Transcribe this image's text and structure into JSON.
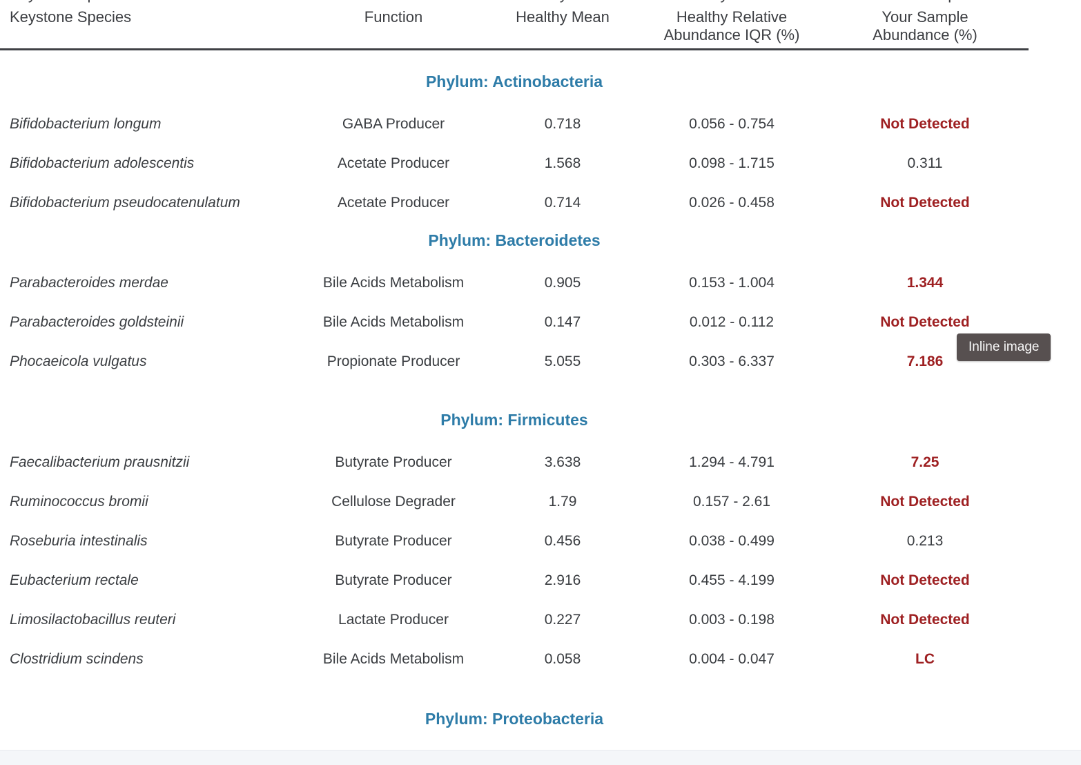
{
  "header": {
    "columns": [
      {
        "label": "Keystone Species"
      },
      {
        "label": "Function"
      },
      {
        "label": "Healthy Mean"
      },
      {
        "label": "Healthy Relative",
        "sub": "Abundance IQR (%)"
      },
      {
        "label": "Your Sample",
        "sub": "Abundance (%)"
      }
    ]
  },
  "sections": [
    {
      "title": "Phylum: Actinobacteria",
      "rows": [
        {
          "species": "Bifidobacterium longum",
          "function": "GABA Producer",
          "healthy_mean": "0.718",
          "iqr": "0.056 - 0.754",
          "sample": "Not Detected",
          "status": "alert"
        },
        {
          "species": "Bifidobacterium adolescentis",
          "function": "Acetate Producer",
          "healthy_mean": "1.568",
          "iqr": "0.098 - 1.715",
          "sample": "0.311",
          "status": "normal"
        },
        {
          "species": "Bifidobacterium pseudocatenulatum",
          "function": "Acetate Producer",
          "healthy_mean": "0.714",
          "iqr": "0.026 - 0.458",
          "sample": "Not Detected",
          "status": "alert"
        }
      ]
    },
    {
      "title": "Phylum: Bacteroidetes",
      "rows": [
        {
          "species": "Parabacteroides merdae",
          "function": "Bile Acids Metabolism",
          "healthy_mean": "0.905",
          "iqr": "0.153 - 1.004",
          "sample": "1.344",
          "status": "alert"
        },
        {
          "species": "Parabacteroides goldsteinii",
          "function": "Bile Acids Metabolism",
          "healthy_mean": "0.147",
          "iqr": "0.012 - 0.112",
          "sample": "Not Detected",
          "status": "alert"
        },
        {
          "species": "Phocaeicola vulgatus",
          "function": "Propionate Producer",
          "healthy_mean": "5.055",
          "iqr": "0.303 - 6.337",
          "sample": "7.186",
          "status": "alert"
        }
      ]
    },
    {
      "title": "Phylum: Firmicutes",
      "rows": [
        {
          "species": "Faecalibacterium prausnitzii",
          "function": "Butyrate Producer",
          "healthy_mean": "3.638",
          "iqr": "1.294 - 4.791",
          "sample": "7.25",
          "status": "alert"
        },
        {
          "species": "Ruminococcus bromii",
          "function": "Cellulose Degrader",
          "healthy_mean": "1.79",
          "iqr": "0.157 - 2.61",
          "sample": "Not Detected",
          "status": "alert"
        },
        {
          "species": "Roseburia intestinalis",
          "function": "Butyrate Producer",
          "healthy_mean": "0.456",
          "iqr": "0.038 - 0.499",
          "sample": "0.213",
          "status": "normal"
        },
        {
          "species": "Eubacterium rectale",
          "function": "Butyrate Producer",
          "healthy_mean": "2.916",
          "iqr": "0.455 - 4.199",
          "sample": "Not Detected",
          "status": "alert"
        },
        {
          "species": "Limosilactobacillus reuteri",
          "function": "Lactate Producer",
          "healthy_mean": "0.227",
          "iqr": "0.003 - 0.198",
          "sample": "Not Detected",
          "status": "alert"
        },
        {
          "species": "Clostridium scindens",
          "function": "Bile Acids Metabolism",
          "healthy_mean": "0.058",
          "iqr": "0.004 - 0.047",
          "sample": "LC",
          "status": "alert"
        }
      ]
    },
    {
      "title": "Phylum: Proteobacteria",
      "rows": []
    }
  ],
  "tooltip": {
    "label": "Inline image"
  },
  "colors": {
    "accent_blue": "#2e7ca8",
    "alert_red": "#9e2022",
    "text": "#3a3d41",
    "tooltip_bg": "#575050",
    "bottom_strip": "#f4f6f9"
  }
}
